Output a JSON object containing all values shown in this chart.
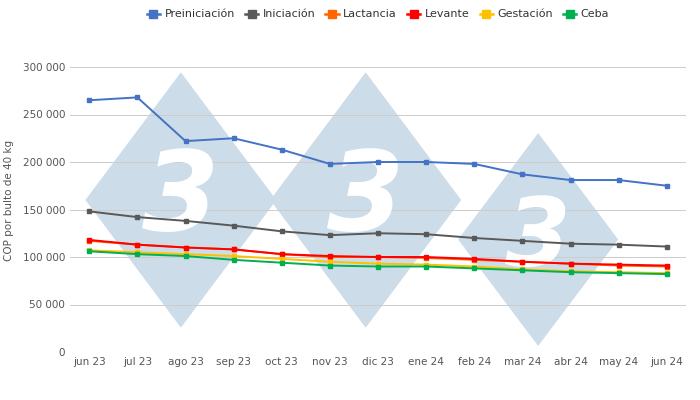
{
  "x_labels": [
    "jun 23",
    "jul 23",
    "ago 23",
    "sep 23",
    "oct 23",
    "nov 23",
    "dic 23",
    "ene 24",
    "feb 24",
    "mar 24",
    "abr 24",
    "may 24",
    "jun 24"
  ],
  "series": {
    "Preiniciación": {
      "color": "#4472C4",
      "values": [
        265000,
        268000,
        222000,
        225000,
        213000,
        198000,
        200000,
        200000,
        198000,
        187000,
        181000,
        181000,
        175000
      ]
    },
    "Iniciación": {
      "color": "#595959",
      "values": [
        148000,
        142000,
        138000,
        133000,
        127000,
        123000,
        125000,
        124000,
        120000,
        117000,
        114000,
        113000,
        111000
      ]
    },
    "Lactancia": {
      "color": "#FF6600",
      "values": [
        117000,
        113000,
        110000,
        108000,
        103000,
        100000,
        100000,
        99000,
        97000,
        95000,
        93000,
        91000,
        90000
      ]
    },
    "Levante": {
      "color": "#FF0000",
      "values": [
        118000,
        113000,
        110000,
        108000,
        103000,
        101000,
        100000,
        100000,
        98000,
        95000,
        93000,
        92000,
        91000
      ]
    },
    "Gestación": {
      "color": "#FFC000",
      "values": [
        107000,
        105000,
        103000,
        101000,
        98000,
        95000,
        93000,
        92000,
        90000,
        87000,
        85000,
        84000,
        83000
      ]
    },
    "Ceba": {
      "color": "#00B050",
      "values": [
        106000,
        103000,
        101000,
        97000,
        94000,
        91000,
        90000,
        90000,
        88000,
        86000,
        84000,
        83000,
        82000
      ]
    }
  },
  "ylabel": "COP por bulto de 40 kg",
  "ylim": [
    0,
    320000
  ],
  "yticks": [
    0,
    50000,
    100000,
    150000,
    200000,
    250000,
    300000
  ],
  "background_color": "#ffffff",
  "plot_bg_color": "#ffffff",
  "grid_color": "#cccccc",
  "legend_order": [
    "Preiniciación",
    "Iniciación",
    "Lactancia",
    "Levante",
    "Gestación",
    "Ceba"
  ],
  "watermark_color": "#ccdce8",
  "axis_fontsize": 7.5,
  "legend_fontsize": 8,
  "tick_color": "#555555"
}
